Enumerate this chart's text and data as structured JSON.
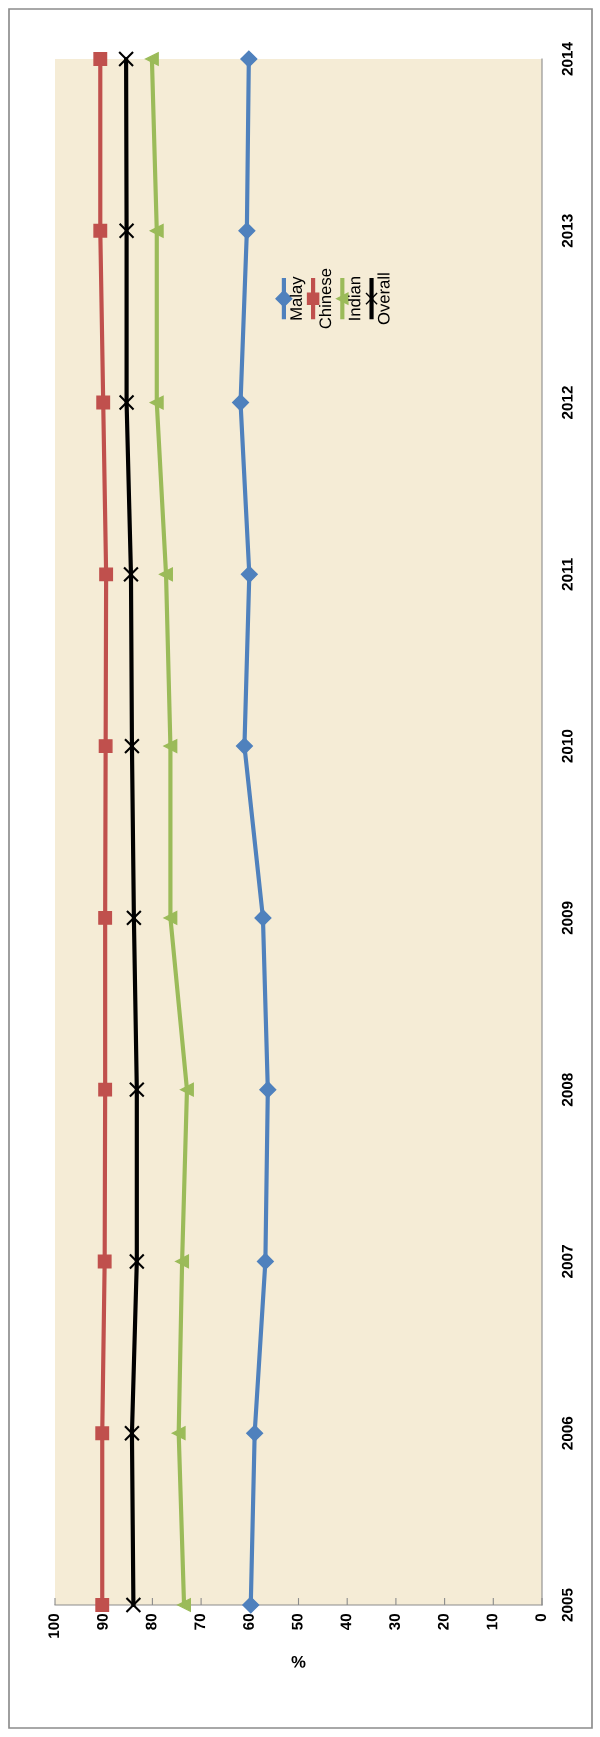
{
  "chart_data": {
    "type": "line",
    "orientation": "horizontal",
    "categories": [
      "2014",
      "2013",
      "2012",
      "2011",
      "2010",
      "2009",
      "2008",
      "2007",
      "2006",
      "2005"
    ],
    "xlabel": "%",
    "xlim": [
      100,
      0
    ],
    "xticks": [
      100,
      90,
      80,
      70,
      60,
      50,
      40,
      30,
      20,
      10,
      0
    ],
    "grid": false,
    "legend": "right",
    "line_style": "solid",
    "series": [
      {
        "name": "Malay",
        "color": "#4f81bd",
        "marker": "diamond",
        "values": [
          60.2,
          60.6,
          61.9,
          60.1,
          61.1,
          57.3,
          56.3,
          56.8,
          59.0,
          59.8
        ]
      },
      {
        "name": "Chinese",
        "color": "#c0504d",
        "marker": "square",
        "values": [
          90.7,
          90.7,
          90.1,
          89.5,
          89.6,
          89.7,
          89.7,
          89.8,
          90.3,
          90.3
        ]
      },
      {
        "name": "Indian",
        "color": "#9bbb59",
        "marker": "triangle",
        "values": [
          80.1,
          79.1,
          79.1,
          77.2,
          76.3,
          76.3,
          72.9,
          73.9,
          74.6,
          73.5
        ]
      },
      {
        "name": "Overall",
        "color": "#000000",
        "marker": "cross",
        "values": [
          85.4,
          85.3,
          85.3,
          84.4,
          84.2,
          83.8,
          83.2,
          83.2,
          84.2,
          83.9
        ]
      }
    ]
  }
}
